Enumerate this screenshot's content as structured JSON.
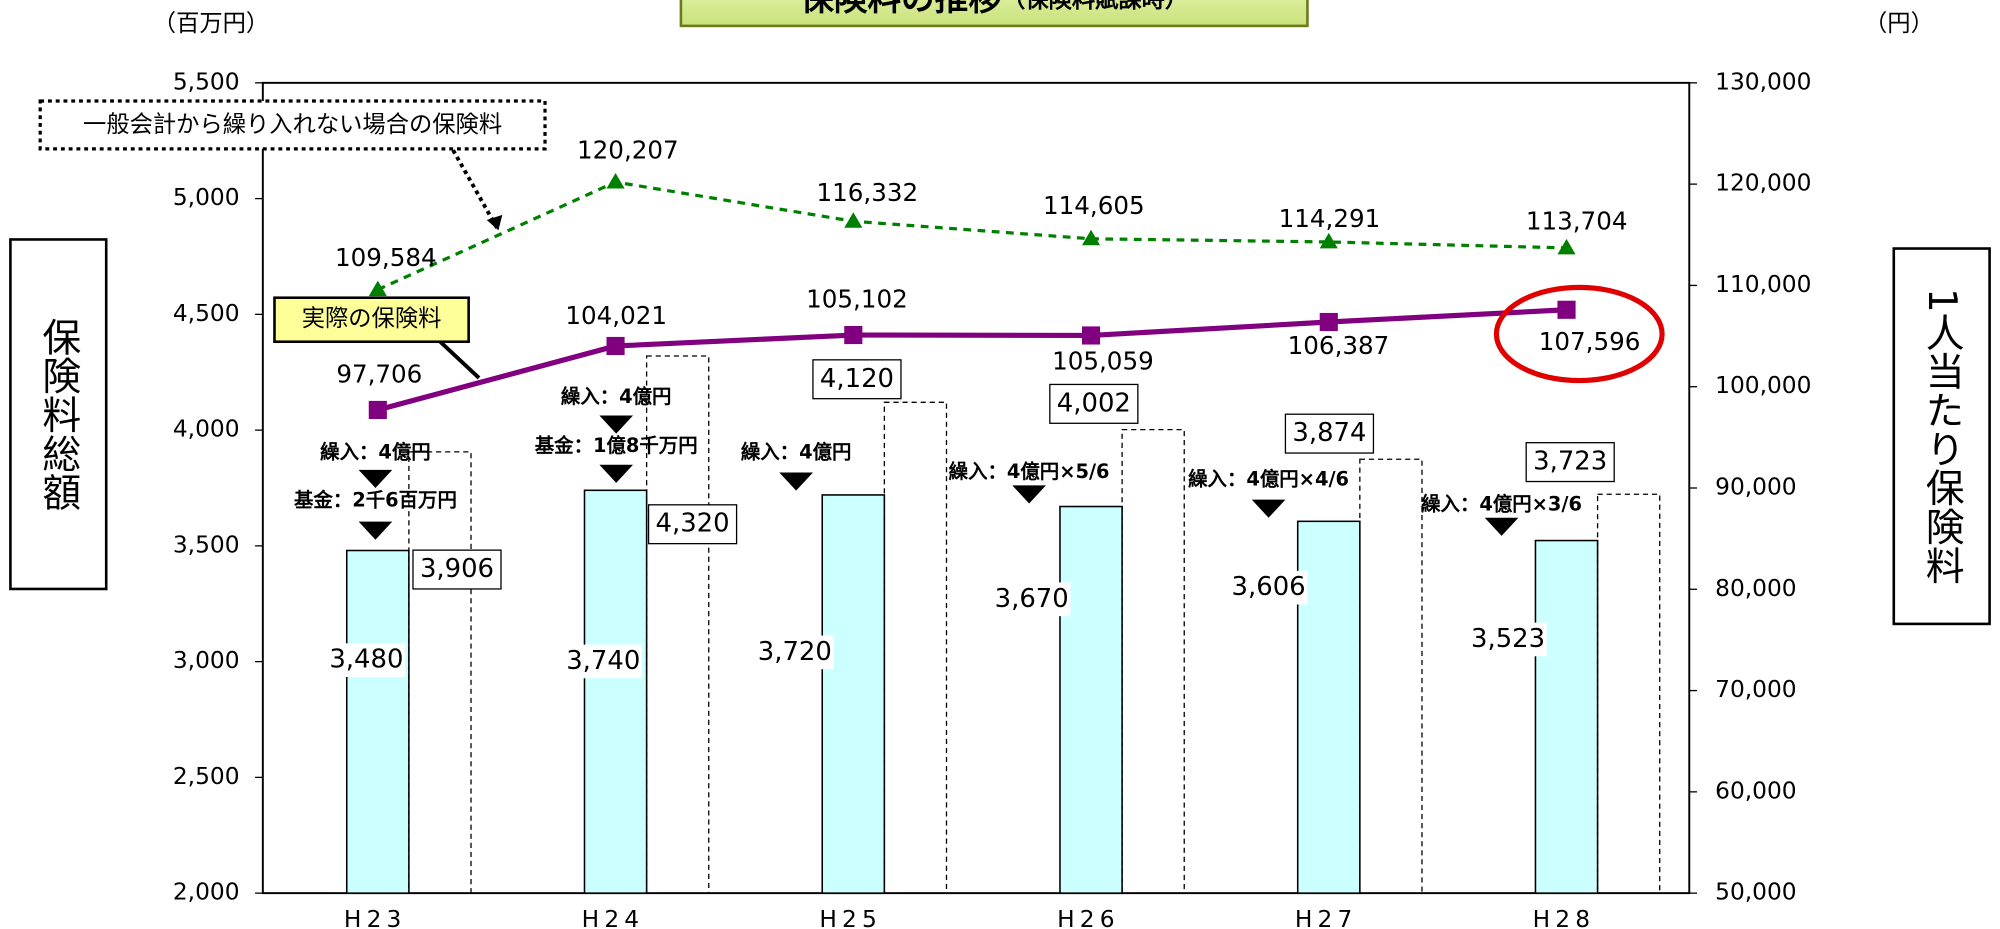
{
  "chart_data": {
    "type": "bar",
    "title": "保険料の推移",
    "subtitle": "（保険料賦課時）",
    "y_unit": "（百万円）",
    "y2_unit": "（円）",
    "ylabel": "保険料総額",
    "y2label": "1人当たり保険料",
    "categories": [
      "H23",
      "H24",
      "H25",
      "H26",
      "H27",
      "H28"
    ],
    "ylim": [
      2000,
      5500
    ],
    "yticks": [
      {
        "value": 2000,
        "label": "2,000"
      },
      {
        "value": 2500,
        "label": "2,500"
      },
      {
        "value": 3000,
        "label": "3,000"
      },
      {
        "value": 3500,
        "label": "3,500"
      },
      {
        "value": 4000,
        "label": "4,000"
      },
      {
        "value": 4500,
        "label": "4,500"
      },
      {
        "value": 5000,
        "label": "5,000"
      },
      {
        "value": 5500,
        "label": "5,500"
      }
    ],
    "y2lim": [
      50000,
      130000
    ],
    "y2ticks": [
      {
        "value": 50000,
        "label": "50,000"
      },
      {
        "value": 60000,
        "label": "60,000"
      },
      {
        "value": 70000,
        "label": "70,000"
      },
      {
        "value": 80000,
        "label": "80,000"
      },
      {
        "value": 90000,
        "label": "90,000"
      },
      {
        "value": 100000,
        "label": "100,000"
      },
      {
        "value": 110000,
        "label": "110,000"
      },
      {
        "value": 120000,
        "label": "120,000"
      },
      {
        "value": 130000,
        "label": "130,000"
      }
    ],
    "series": [
      {
        "type": "bar",
        "color": "#ccffff",
        "values": [
          3480,
          3740,
          3720,
          3670,
          3606,
          3523
        ],
        "value_labels": [
          "3,480",
          "3,740",
          "3,720",
          "3,670",
          "3,606",
          "3,523"
        ]
      },
      {
        "type": "bar",
        "style": "dashed",
        "color": "#000000",
        "values": [
          3906,
          4320,
          4120,
          4002,
          3874,
          3723
        ],
        "value_labels": [
          "3,906",
          "4,320",
          "4,120",
          "4,002",
          "3,874",
          "3,723"
        ]
      },
      {
        "type": "line",
        "name": "実際の保険料",
        "axis": "y2",
        "color": "#800080",
        "values": [
          97706,
          104021,
          105102,
          105059,
          106387,
          107596
        ],
        "value_labels": [
          "97,706",
          "104,021",
          "105,102",
          "105,059",
          "106,387",
          "107,596"
        ]
      },
      {
        "type": "line",
        "name": "一般会計から繰り入れない場合の保険料",
        "axis": "y2",
        "style": "dashed",
        "color": "#008000",
        "values": [
          109584,
          120207,
          116332,
          114605,
          114291,
          113704
        ],
        "value_labels": [
          "109,584",
          "120,207",
          "116,332",
          "114,605",
          "114,291",
          "113,704"
        ]
      }
    ],
    "annotations": [
      "繰入：4億円",
      "基金：2千6百万円",
      "繰入：4億円",
      "基金：1億8千万円",
      "繰入：4億円",
      "繰入：4億円×5/6",
      "繰入：4億円×4/6",
      "繰入：4億円×3/6"
    ]
  }
}
